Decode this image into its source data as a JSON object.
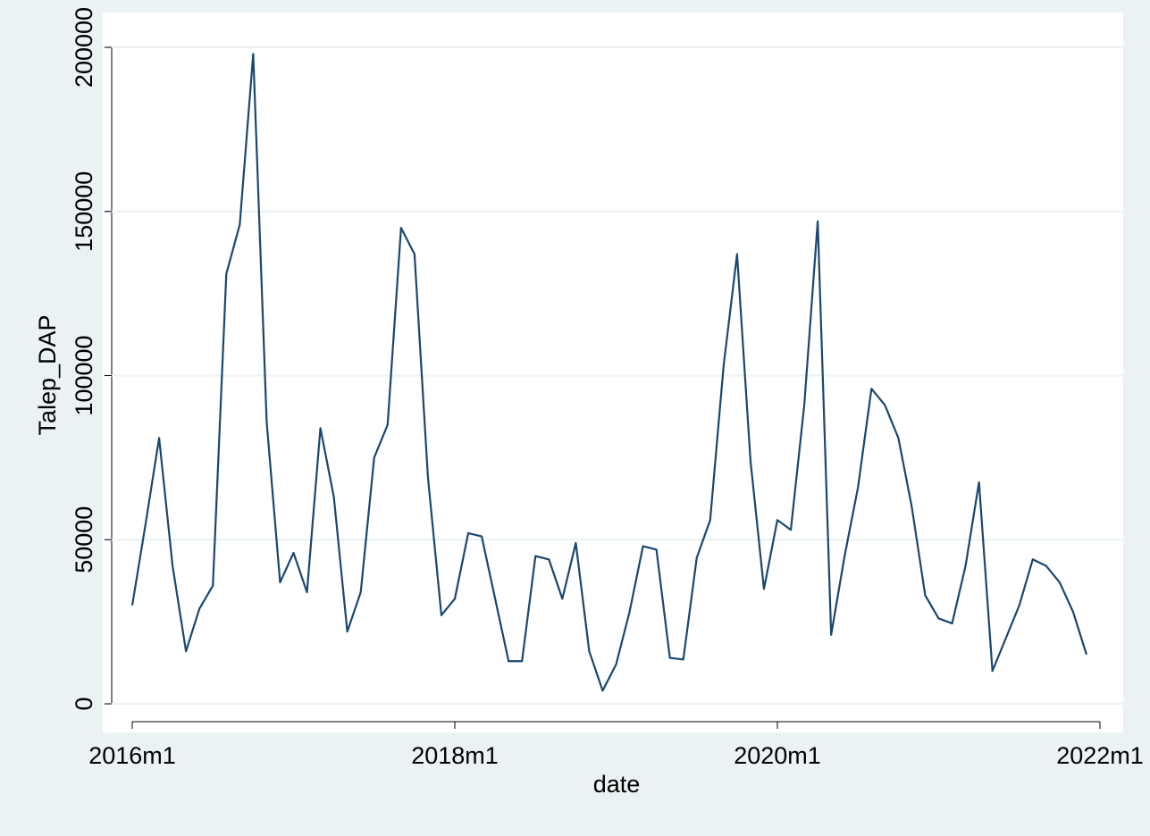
{
  "chart_data": {
    "type": "line",
    "x": [
      "2016m1",
      "2016m2",
      "2016m3",
      "2016m4",
      "2016m5",
      "2016m6",
      "2016m7",
      "2016m8",
      "2016m9",
      "2016m10",
      "2016m11",
      "2016m12",
      "2017m1",
      "2017m2",
      "2017m3",
      "2017m4",
      "2017m5",
      "2017m6",
      "2017m7",
      "2017m8",
      "2017m9",
      "2017m10",
      "2017m11",
      "2017m12",
      "2018m1",
      "2018m2",
      "2018m3",
      "2018m4",
      "2018m5",
      "2018m6",
      "2018m7",
      "2018m8",
      "2018m9",
      "2018m10",
      "2018m11",
      "2018m12",
      "2019m1",
      "2019m2",
      "2019m3",
      "2019m4",
      "2019m5",
      "2019m6",
      "2019m7",
      "2019m8",
      "2019m9",
      "2019m10",
      "2019m11",
      "2019m12",
      "2020m1",
      "2020m2",
      "2020m3",
      "2020m4",
      "2020m5",
      "2020m6",
      "2020m7",
      "2020m8",
      "2020m9",
      "2020m10",
      "2020m11",
      "2020m12",
      "2021m1",
      "2021m2",
      "2021m3",
      "2021m4",
      "2021m5",
      "2021m6",
      "2021m7",
      "2021m8",
      "2021m9",
      "2021m10",
      "2021m11",
      "2021m12"
    ],
    "values": [
      30000,
      55000,
      81000,
      42000,
      16000,
      29000,
      36000,
      131000,
      146000,
      198000,
      86000,
      37000,
      46000,
      34000,
      84000,
      63000,
      22000,
      34000,
      75000,
      85000,
      145000,
      137000,
      69000,
      27000,
      32000,
      52000,
      51000,
      32000,
      13000,
      13000,
      45000,
      44000,
      32000,
      49000,
      16000,
      4000,
      12000,
      28000,
      48000,
      47000,
      14000,
      13500,
      44500,
      56000,
      103000,
      137000,
      74000,
      35000,
      56000,
      53000,
      91000,
      147000,
      21000,
      45000,
      66000,
      96000,
      91000,
      81000,
      60000,
      33000,
      26000,
      24500,
      42000,
      67500,
      10000,
      20000,
      30000,
      44000,
      42000,
      37000,
      28000,
      15000
    ],
    "color": "#1a476f",
    "x_label": "date",
    "y_label": "Talep_DAP",
    "xlim": [
      "2016m1",
      "2022m1"
    ],
    "xticks": [
      "2016m1",
      "2018m1",
      "2020m1",
      "2022m1"
    ],
    "ylim": [
      0,
      200000
    ],
    "yticks": [
      0,
      50000,
      100000,
      150000,
      200000
    ],
    "grid": true
  }
}
